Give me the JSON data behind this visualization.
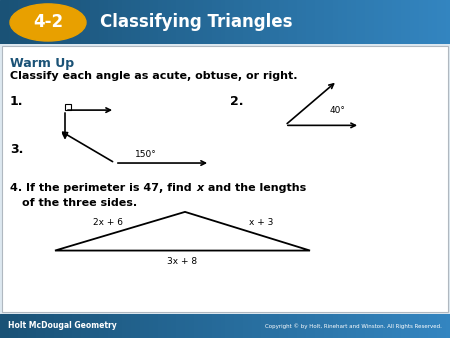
{
  "header_bg_color": "#1a5276",
  "header_bg_gradient_right": "#2e86c1",
  "header_text": "Classifying Triangles",
  "header_badge": "4-2",
  "badge_color": "#e8a000",
  "body_bg_color": "#dde8f0",
  "warm_up_color": "#1a5276",
  "footer_bg_color": "#1a5276",
  "footer_left": "Holt McDougal Geometry",
  "footer_right": "Copyright © by Holt, Rinehart and Winston. All Rights Reserved.",
  "title_main": "Warm Up",
  "line1": "Classify each angle as acute, obtuse, or right."
}
